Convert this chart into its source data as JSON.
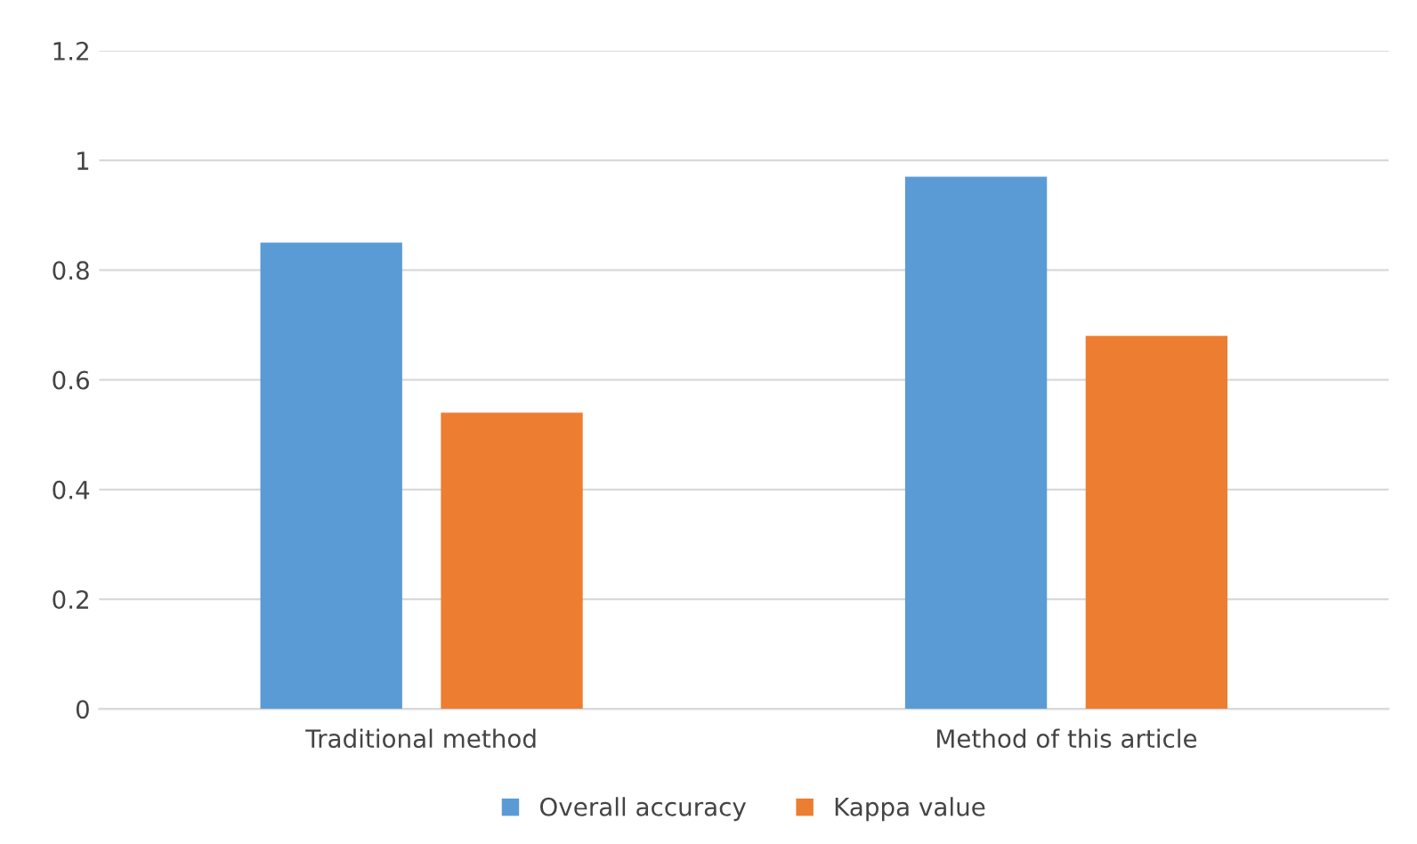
{
  "chart_data": {
    "type": "bar",
    "categories": [
      "Traditional method",
      "Method of this article"
    ],
    "series": [
      {
        "name": "Overall accuracy",
        "color": "#5b9bd5",
        "values": [
          0.85,
          0.97
        ]
      },
      {
        "name": "Kappa value",
        "color": "#ed7d31",
        "values": [
          0.54,
          0.68
        ]
      }
    ],
    "ylim": [
      0,
      1.2
    ],
    "yticks": [
      0,
      {
        "value": 0.2,
        "label": "0.2"
      },
      {
        "value": 0.4,
        "label": "0.4"
      },
      {
        "value": 0.6,
        "label": "0.6"
      },
      {
        "value": 0.8,
        "label": "0.8"
      },
      1,
      {
        "value": 1.2,
        "label": "1.2"
      }
    ],
    "grid": "y",
    "legend": "bottom"
  }
}
